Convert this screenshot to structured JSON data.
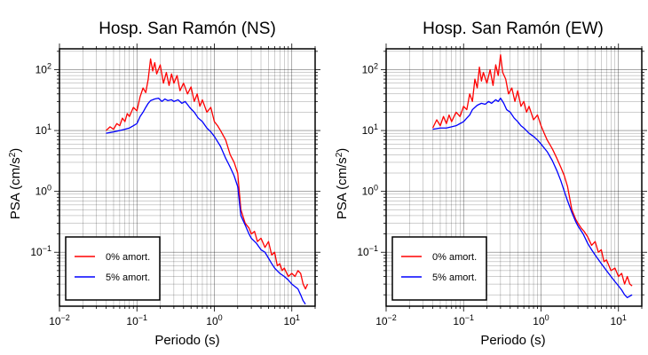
{
  "chart_data": [
    {
      "type": "line",
      "title": "Hosp. San Ramón (NS)",
      "xlabel": "Periodo (s)",
      "ylabel_main": "PSA (cm/s",
      "ylabel_sup": "2",
      "ylabel_close": ")",
      "x_scale": "log",
      "y_scale": "log",
      "xlim": [
        0.01,
        20
      ],
      "ylim": [
        0.013,
        220
      ],
      "x_ticks": [
        {
          "value": 0.01,
          "base": "10",
          "exp": "−2"
        },
        {
          "value": 0.1,
          "base": "10",
          "exp": "−1"
        },
        {
          "value": 1,
          "base": "10",
          "exp": "0"
        },
        {
          "value": 10,
          "base": "10",
          "exp": "1"
        }
      ],
      "y_ticks": [
        {
          "value": 0.1,
          "base": "10",
          "exp": "−1"
        },
        {
          "value": 1,
          "base": "10",
          "exp": "0"
        },
        {
          "value": 10,
          "base": "10",
          "exp": "1"
        },
        {
          "value": 100,
          "base": "10",
          "exp": "2"
        }
      ],
      "grid": true,
      "legend_position": "bottom-left",
      "series": [
        {
          "name": "0% amort.",
          "color": "#ff0000",
          "points": [
            [
              0.04,
              10.0
            ],
            [
              0.045,
              11.5
            ],
            [
              0.05,
              10.5
            ],
            [
              0.055,
              13.0
            ],
            [
              0.06,
              12.0
            ],
            [
              0.065,
              16.0
            ],
            [
              0.07,
              14.0
            ],
            [
              0.075,
              19.0
            ],
            [
              0.08,
              17.0
            ],
            [
              0.09,
              24.0
            ],
            [
              0.1,
              21.0
            ],
            [
              0.11,
              36.0
            ],
            [
              0.12,
              50.0
            ],
            [
              0.13,
              42.0
            ],
            [
              0.14,
              70.0
            ],
            [
              0.15,
              150.0
            ],
            [
              0.16,
              95.0
            ],
            [
              0.17,
              130.0
            ],
            [
              0.18,
              85.0
            ],
            [
              0.2,
              120.0
            ],
            [
              0.22,
              60.0
            ],
            [
              0.24,
              90.0
            ],
            [
              0.26,
              55.0
            ],
            [
              0.28,
              85.0
            ],
            [
              0.3,
              60.0
            ],
            [
              0.33,
              80.0
            ],
            [
              0.36,
              45.0
            ],
            [
              0.4,
              60.0
            ],
            [
              0.45,
              40.0
            ],
            [
              0.5,
              52.0
            ],
            [
              0.55,
              30.0
            ],
            [
              0.6,
              40.0
            ],
            [
              0.65,
              25.0
            ],
            [
              0.7,
              32.0
            ],
            [
              0.8,
              20.0
            ],
            [
              0.9,
              24.0
            ],
            [
              1.0,
              14.0
            ],
            [
              1.1,
              12.0
            ],
            [
              1.2,
              10.0
            ],
            [
              1.4,
              7.0
            ],
            [
              1.6,
              4.0
            ],
            [
              1.8,
              3.0
            ],
            [
              2.0,
              2.0
            ],
            [
              2.2,
              0.5
            ],
            [
              2.5,
              0.3
            ],
            [
              2.8,
              0.25
            ],
            [
              3.0,
              0.2
            ],
            [
              3.3,
              0.22
            ],
            [
              3.6,
              0.15
            ],
            [
              4.0,
              0.17
            ],
            [
              4.5,
              0.12
            ],
            [
              5.0,
              0.15
            ],
            [
              5.5,
              0.09
            ],
            [
              6.0,
              0.1
            ],
            [
              6.5,
              0.06
            ],
            [
              7.0,
              0.065
            ],
            [
              7.5,
              0.05
            ],
            [
              8.0,
              0.055
            ],
            [
              9.0,
              0.04
            ],
            [
              10.0,
              0.045
            ],
            [
              11.0,
              0.04
            ],
            [
              12.0,
              0.05
            ],
            [
              13.0,
              0.045
            ],
            [
              14.0,
              0.03
            ],
            [
              15.0,
              0.025
            ],
            [
              16.0,
              0.03
            ]
          ]
        },
        {
          "name": "5% amort.",
          "color": "#0000ff",
          "points": [
            [
              0.04,
              9.0
            ],
            [
              0.05,
              9.5
            ],
            [
              0.06,
              10.0
            ],
            [
              0.07,
              10.5
            ],
            [
              0.08,
              11.0
            ],
            [
              0.09,
              12.0
            ],
            [
              0.1,
              13.0
            ],
            [
              0.11,
              17.0
            ],
            [
              0.12,
              20.0
            ],
            [
              0.13,
              24.0
            ],
            [
              0.14,
              28.0
            ],
            [
              0.15,
              31.0
            ],
            [
              0.17,
              33.0
            ],
            [
              0.19,
              34.0
            ],
            [
              0.21,
              30.0
            ],
            [
              0.23,
              33.0
            ],
            [
              0.25,
              31.0
            ],
            [
              0.28,
              32.0
            ],
            [
              0.3,
              30.0
            ],
            [
              0.34,
              32.0
            ],
            [
              0.38,
              28.0
            ],
            [
              0.42,
              30.0
            ],
            [
              0.48,
              24.0
            ],
            [
              0.55,
              20.0
            ],
            [
              0.62,
              16.0
            ],
            [
              0.7,
              14.0
            ],
            [
              0.8,
              11.0
            ],
            [
              0.9,
              9.5
            ],
            [
              1.0,
              8.0
            ],
            [
              1.2,
              5.5
            ],
            [
              1.4,
              3.5
            ],
            [
              1.6,
              2.5
            ],
            [
              1.8,
              1.8
            ],
            [
              2.0,
              1.2
            ],
            [
              2.2,
              0.4
            ],
            [
              2.5,
              0.28
            ],
            [
              2.8,
              0.2
            ],
            [
              3.0,
              0.17
            ],
            [
              3.5,
              0.14
            ],
            [
              4.0,
              0.11
            ],
            [
              4.5,
              0.1
            ],
            [
              5.0,
              0.08
            ],
            [
              5.5,
              0.065
            ],
            [
              6.0,
              0.055
            ],
            [
              7.0,
              0.045
            ],
            [
              8.0,
              0.04
            ],
            [
              9.0,
              0.035
            ],
            [
              10.0,
              0.03
            ],
            [
              12.0,
              0.025
            ],
            [
              13.0,
              0.02
            ],
            [
              14.0,
              0.016
            ],
            [
              15.0,
              0.014
            ]
          ]
        }
      ]
    },
    {
      "type": "line",
      "title": "Hosp. San Ramón (EW)",
      "xlabel": "Periodo (s)",
      "ylabel_main": "PSA (cm/s",
      "ylabel_sup": "2",
      "ylabel_close": ")",
      "x_scale": "log",
      "y_scale": "log",
      "xlim": [
        0.01,
        20
      ],
      "ylim": [
        0.013,
        220
      ],
      "x_ticks": [
        {
          "value": 0.01,
          "base": "10",
          "exp": "−2"
        },
        {
          "value": 0.1,
          "base": "10",
          "exp": "−1"
        },
        {
          "value": 1,
          "base": "10",
          "exp": "0"
        },
        {
          "value": 10,
          "base": "10",
          "exp": "1"
        }
      ],
      "y_ticks": [
        {
          "value": 0.1,
          "base": "10",
          "exp": "−1"
        },
        {
          "value": 1,
          "base": "10",
          "exp": "0"
        },
        {
          "value": 10,
          "base": "10",
          "exp": "1"
        },
        {
          "value": 100,
          "base": "10",
          "exp": "2"
        }
      ],
      "grid": true,
      "legend_position": "bottom-left",
      "series": [
        {
          "name": "0% amort.",
          "color": "#ff0000",
          "points": [
            [
              0.04,
              11.0
            ],
            [
              0.045,
              15.0
            ],
            [
              0.05,
              12.0
            ],
            [
              0.055,
              17.0
            ],
            [
              0.06,
              13.0
            ],
            [
              0.065,
              18.0
            ],
            [
              0.07,
              14.0
            ],
            [
              0.08,
              20.0
            ],
            [
              0.09,
              17.0
            ],
            [
              0.1,
              25.0
            ],
            [
              0.11,
              22.0
            ],
            [
              0.12,
              40.0
            ],
            [
              0.13,
              30.0
            ],
            [
              0.14,
              70.0
            ],
            [
              0.15,
              50.0
            ],
            [
              0.16,
              110.0
            ],
            [
              0.17,
              65.0
            ],
            [
              0.18,
              90.0
            ],
            [
              0.2,
              60.0
            ],
            [
              0.22,
              100.0
            ],
            [
              0.24,
              55.0
            ],
            [
              0.26,
              120.0
            ],
            [
              0.28,
              80.0
            ],
            [
              0.3,
              175.0
            ],
            [
              0.32,
              90.0
            ],
            [
              0.35,
              70.0
            ],
            [
              0.38,
              40.0
            ],
            [
              0.42,
              50.0
            ],
            [
              0.46,
              30.0
            ],
            [
              0.5,
              45.0
            ],
            [
              0.55,
              25.0
            ],
            [
              0.6,
              30.0
            ],
            [
              0.65,
              20.0
            ],
            [
              0.7,
              25.0
            ],
            [
              0.8,
              15.0
            ],
            [
              0.9,
              18.0
            ],
            [
              1.0,
              12.0
            ],
            [
              1.1,
              9.0
            ],
            [
              1.2,
              7.0
            ],
            [
              1.4,
              5.0
            ],
            [
              1.6,
              3.5
            ],
            [
              1.8,
              2.5
            ],
            [
              2.0,
              1.8
            ],
            [
              2.2,
              1.2
            ],
            [
              2.5,
              0.5
            ],
            [
              2.8,
              0.35
            ],
            [
              3.0,
              0.3
            ],
            [
              3.3,
              0.25
            ],
            [
              3.6,
              0.22
            ],
            [
              4.0,
              0.18
            ],
            [
              4.5,
              0.13
            ],
            [
              5.0,
              0.15
            ],
            [
              5.5,
              0.1
            ],
            [
              6.0,
              0.11
            ],
            [
              6.5,
              0.07
            ],
            [
              7.0,
              0.075
            ],
            [
              8.0,
              0.05
            ],
            [
              9.0,
              0.055
            ],
            [
              10.0,
              0.04
            ],
            [
              11.0,
              0.045
            ],
            [
              12.0,
              0.03
            ],
            [
              13.0,
              0.04
            ],
            [
              14.0,
              0.03
            ],
            [
              15.0,
              0.028
            ]
          ]
        },
        {
          "name": "5% amort.",
          "color": "#0000ff",
          "points": [
            [
              0.04,
              10.5
            ],
            [
              0.05,
              11.0
            ],
            [
              0.06,
              11.0
            ],
            [
              0.07,
              11.5
            ],
            [
              0.08,
              12.0
            ],
            [
              0.09,
              13.0
            ],
            [
              0.1,
              14.0
            ],
            [
              0.11,
              16.0
            ],
            [
              0.12,
              18.0
            ],
            [
              0.13,
              22.0
            ],
            [
              0.14,
              24.0
            ],
            [
              0.15,
              26.0
            ],
            [
              0.17,
              28.0
            ],
            [
              0.19,
              27.0
            ],
            [
              0.21,
              30.0
            ],
            [
              0.23,
              28.0
            ],
            [
              0.26,
              32.0
            ],
            [
              0.28,
              30.0
            ],
            [
              0.3,
              34.0
            ],
            [
              0.33,
              28.0
            ],
            [
              0.36,
              22.0
            ],
            [
              0.4,
              20.0
            ],
            [
              0.45,
              16.0
            ],
            [
              0.5,
              14.0
            ],
            [
              0.55,
              12.0
            ],
            [
              0.6,
              11.0
            ],
            [
              0.7,
              9.0
            ],
            [
              0.8,
              8.0
            ],
            [
              0.9,
              7.0
            ],
            [
              1.0,
              6.0
            ],
            [
              1.2,
              4.5
            ],
            [
              1.4,
              3.2
            ],
            [
              1.6,
              2.2
            ],
            [
              1.8,
              1.5
            ],
            [
              2.0,
              1.0
            ],
            [
              2.2,
              0.7
            ],
            [
              2.5,
              0.45
            ],
            [
              2.8,
              0.32
            ],
            [
              3.0,
              0.27
            ],
            [
              3.5,
              0.2
            ],
            [
              4.0,
              0.14
            ],
            [
              4.5,
              0.11
            ],
            [
              5.0,
              0.09
            ],
            [
              6.0,
              0.065
            ],
            [
              7.0,
              0.05
            ],
            [
              8.0,
              0.04
            ],
            [
              9.0,
              0.033
            ],
            [
              10.0,
              0.028
            ],
            [
              11.0,
              0.024
            ],
            [
              12.0,
              0.02
            ],
            [
              13.0,
              0.018
            ],
            [
              14.0,
              0.019
            ],
            [
              15.0,
              0.02
            ]
          ]
        }
      ]
    }
  ]
}
